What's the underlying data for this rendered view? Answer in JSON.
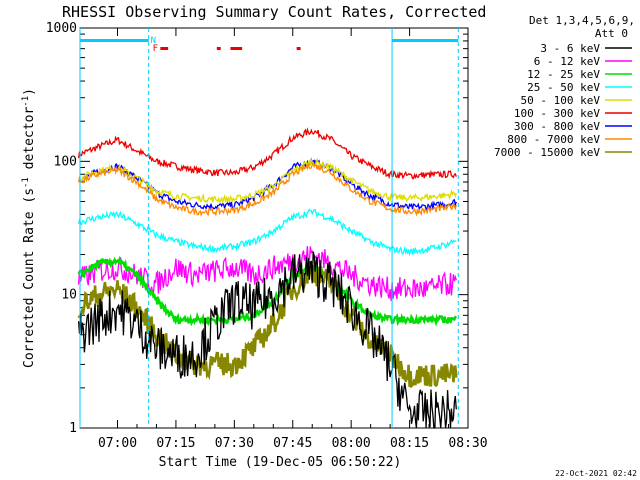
{
  "chart_data": {
    "type": "line",
    "title": "RHESSI Observing Summary Count Rates, Corrected",
    "xlabel": "Start Time (19-Dec-05 06:50:22)",
    "ylabel_main": "Corrected Count Rate (s",
    "ylabel_sup1": "-1",
    "ylabel_mid": " detector",
    "ylabel_sup2": "-1",
    "ylabel_end": ")",
    "xlim": [
      "06:50:22",
      "08:30:00"
    ],
    "ylim": [
      1,
      1000
    ],
    "yscale": "log",
    "x_ticks": [
      "07:00",
      "07:15",
      "07:30",
      "07:45",
      "08:00",
      "08:15",
      "08:30"
    ],
    "y_ticks": [
      "1",
      "10",
      "100",
      "1000"
    ],
    "legend": {
      "placement": "right",
      "header_line1": "Det 1,3,4,5,6,9,",
      "header_line2": "Att 0",
      "entries": [
        {
          "label": "3 - 6 keV",
          "color": "#000000"
        },
        {
          "label": "6 - 12 keV",
          "color": "#ff00ff"
        },
        {
          "label": "12 - 25 keV",
          "color": "#00dd00"
        },
        {
          "label": "25 - 50 keV",
          "color": "#00ffff"
        },
        {
          "label": "50 - 100 keV",
          "color": "#dddd00"
        },
        {
          "label": "100 - 300 keV",
          "color": "#ee0000"
        },
        {
          "label": "300 - 800 keV",
          "color": "#0000ff"
        },
        {
          "label": "800 - 7000 keV",
          "color": "#ff8800"
        },
        {
          "label": "7000 - 15000 keV",
          "color": "#888800"
        }
      ]
    },
    "flags": {
      "N_label": "N",
      "F_label": "F"
    },
    "series": [
      {
        "color": "#ee0000",
        "x": [
          "06:50",
          "06:55",
          "07:00",
          "07:05",
          "07:10",
          "07:15",
          "07:20",
          "07:25",
          "07:30",
          "07:35",
          "07:40",
          "07:45",
          "07:50",
          "07:55",
          "08:00",
          "08:05",
          "08:10",
          "08:15",
          "08:20",
          "08:25",
          "08:27"
        ],
        "values": [
          112,
          128,
          145,
          120,
          100,
          92,
          86,
          82,
          82,
          90,
          112,
          150,
          170,
          145,
          110,
          92,
          80,
          78,
          79,
          80,
          80
        ]
      },
      {
        "color": "#0000ff",
        "x": [
          "06:50",
          "06:55",
          "07:00",
          "07:05",
          "07:10",
          "07:15",
          "07:20",
          "07:25",
          "07:30",
          "07:35",
          "07:40",
          "07:45",
          "07:50",
          "07:55",
          "08:00",
          "08:05",
          "08:10",
          "08:15",
          "08:20",
          "08:25",
          "08:27"
        ],
        "values": [
          72,
          84,
          92,
          75,
          58,
          50,
          47,
          46,
          47,
          53,
          66,
          90,
          100,
          88,
          68,
          55,
          48,
          45,
          46,
          48,
          50
        ]
      },
      {
        "color": "#dddd00",
        "x": [
          "06:50",
          "06:55",
          "07:00",
          "07:05",
          "07:10",
          "07:15",
          "07:20",
          "07:25",
          "07:30",
          "07:35",
          "07:40",
          "07:45",
          "07:50",
          "07:55",
          "08:00",
          "08:05",
          "08:10",
          "08:15",
          "08:20",
          "08:25",
          "08:27"
        ],
        "values": [
          74,
          85,
          90,
          75,
          60,
          55,
          53,
          52,
          52,
          56,
          65,
          85,
          100,
          90,
          72,
          60,
          54,
          53,
          54,
          56,
          58
        ]
      },
      {
        "color": "#ff8800",
        "x": [
          "06:50",
          "06:55",
          "07:00",
          "07:05",
          "07:10",
          "07:15",
          "07:20",
          "07:25",
          "07:30",
          "07:35",
          "07:40",
          "07:45",
          "07:50",
          "07:55",
          "08:00",
          "08:05",
          "08:10",
          "08:15",
          "08:20",
          "08:25",
          "08:27"
        ],
        "values": [
          70,
          80,
          86,
          70,
          52,
          45,
          42,
          42,
          43,
          48,
          58,
          80,
          95,
          82,
          62,
          50,
          44,
          42,
          43,
          45,
          47
        ]
      },
      {
        "color": "#00ffff",
        "x": [
          "06:50",
          "06:55",
          "07:00",
          "07:05",
          "07:10",
          "07:15",
          "07:20",
          "07:25",
          "07:30",
          "07:35",
          "07:40",
          "07:45",
          "07:50",
          "07:55",
          "08:00",
          "08:05",
          "08:10",
          "08:15",
          "08:20",
          "08:25",
          "08:27"
        ],
        "values": [
          35,
          38,
          40,
          34,
          28,
          25,
          23,
          22,
          23,
          25,
          30,
          38,
          42,
          37,
          30,
          25,
          22,
          21,
          22,
          24,
          26
        ]
      },
      {
        "color": "#ff00ff",
        "x": [
          "06:50",
          "06:55",
          "07:00",
          "07:05",
          "07:10",
          "07:15",
          "07:20",
          "07:25",
          "07:30",
          "07:35",
          "07:40",
          "07:45",
          "07:50",
          "07:55",
          "08:00",
          "08:05",
          "08:10",
          "08:15",
          "08:20",
          "08:25",
          "08:27"
        ],
        "values": [
          13,
          15,
          16,
          14,
          12,
          16,
          14,
          15,
          16,
          14,
          16,
          18,
          20,
          17,
          14,
          12,
          11,
          11,
          11,
          12,
          12
        ]
      },
      {
        "color": "#00dd00",
        "x": [
          "06:50",
          "06:55",
          "07:00",
          "07:05",
          "07:10",
          "07:15",
          "07:20",
          "07:25",
          "07:30",
          "07:35",
          "07:40",
          "07:45",
          "07:50",
          "07:55",
          "08:00",
          "08:05",
          "08:10",
          "08:15",
          "08:20",
          "08:25",
          "08:27"
        ],
        "values": [
          14,
          17,
          18,
          14,
          9,
          6.5,
          6.5,
          6.5,
          6.5,
          7,
          9,
          14,
          16,
          13,
          9,
          7,
          6.5,
          6.5,
          6.5,
          6.5,
          6.5
        ]
      },
      {
        "color": "#888800",
        "x": [
          "06:50",
          "06:55",
          "07:00",
          "07:05",
          "07:10",
          "07:15",
          "07:20",
          "07:25",
          "07:30",
          "07:35",
          "07:40",
          "07:45",
          "07:50",
          "07:55",
          "08:00",
          "08:05",
          "08:10",
          "08:15",
          "08:20",
          "08:25",
          "08:27"
        ],
        "values": [
          8,
          10,
          11,
          8,
          5,
          3.5,
          3,
          3,
          3,
          4,
          6,
          11,
          15,
          12,
          7,
          4.5,
          3.5,
          2.5,
          2.5,
          2.5,
          2.5
        ]
      },
      {
        "color": "#000000",
        "x": [
          "06:50",
          "06:55",
          "07:00",
          "07:05",
          "07:10",
          "07:15",
          "07:20",
          "07:25",
          "07:30",
          "07:35",
          "07:40",
          "07:45",
          "07:50",
          "07:55",
          "08:00",
          "08:05",
          "08:10",
          "08:15",
          "08:20",
          "08:25",
          "08:27"
        ],
        "values": [
          5,
          6.5,
          8,
          6,
          4,
          3.5,
          3.5,
          6,
          9,
          8,
          10,
          14,
          15,
          12,
          8,
          5,
          3,
          1.3,
          1.3,
          1.3,
          1.3
        ]
      }
    ]
  },
  "footer": {
    "timestamp": "22-Oct-2021 02:42"
  }
}
